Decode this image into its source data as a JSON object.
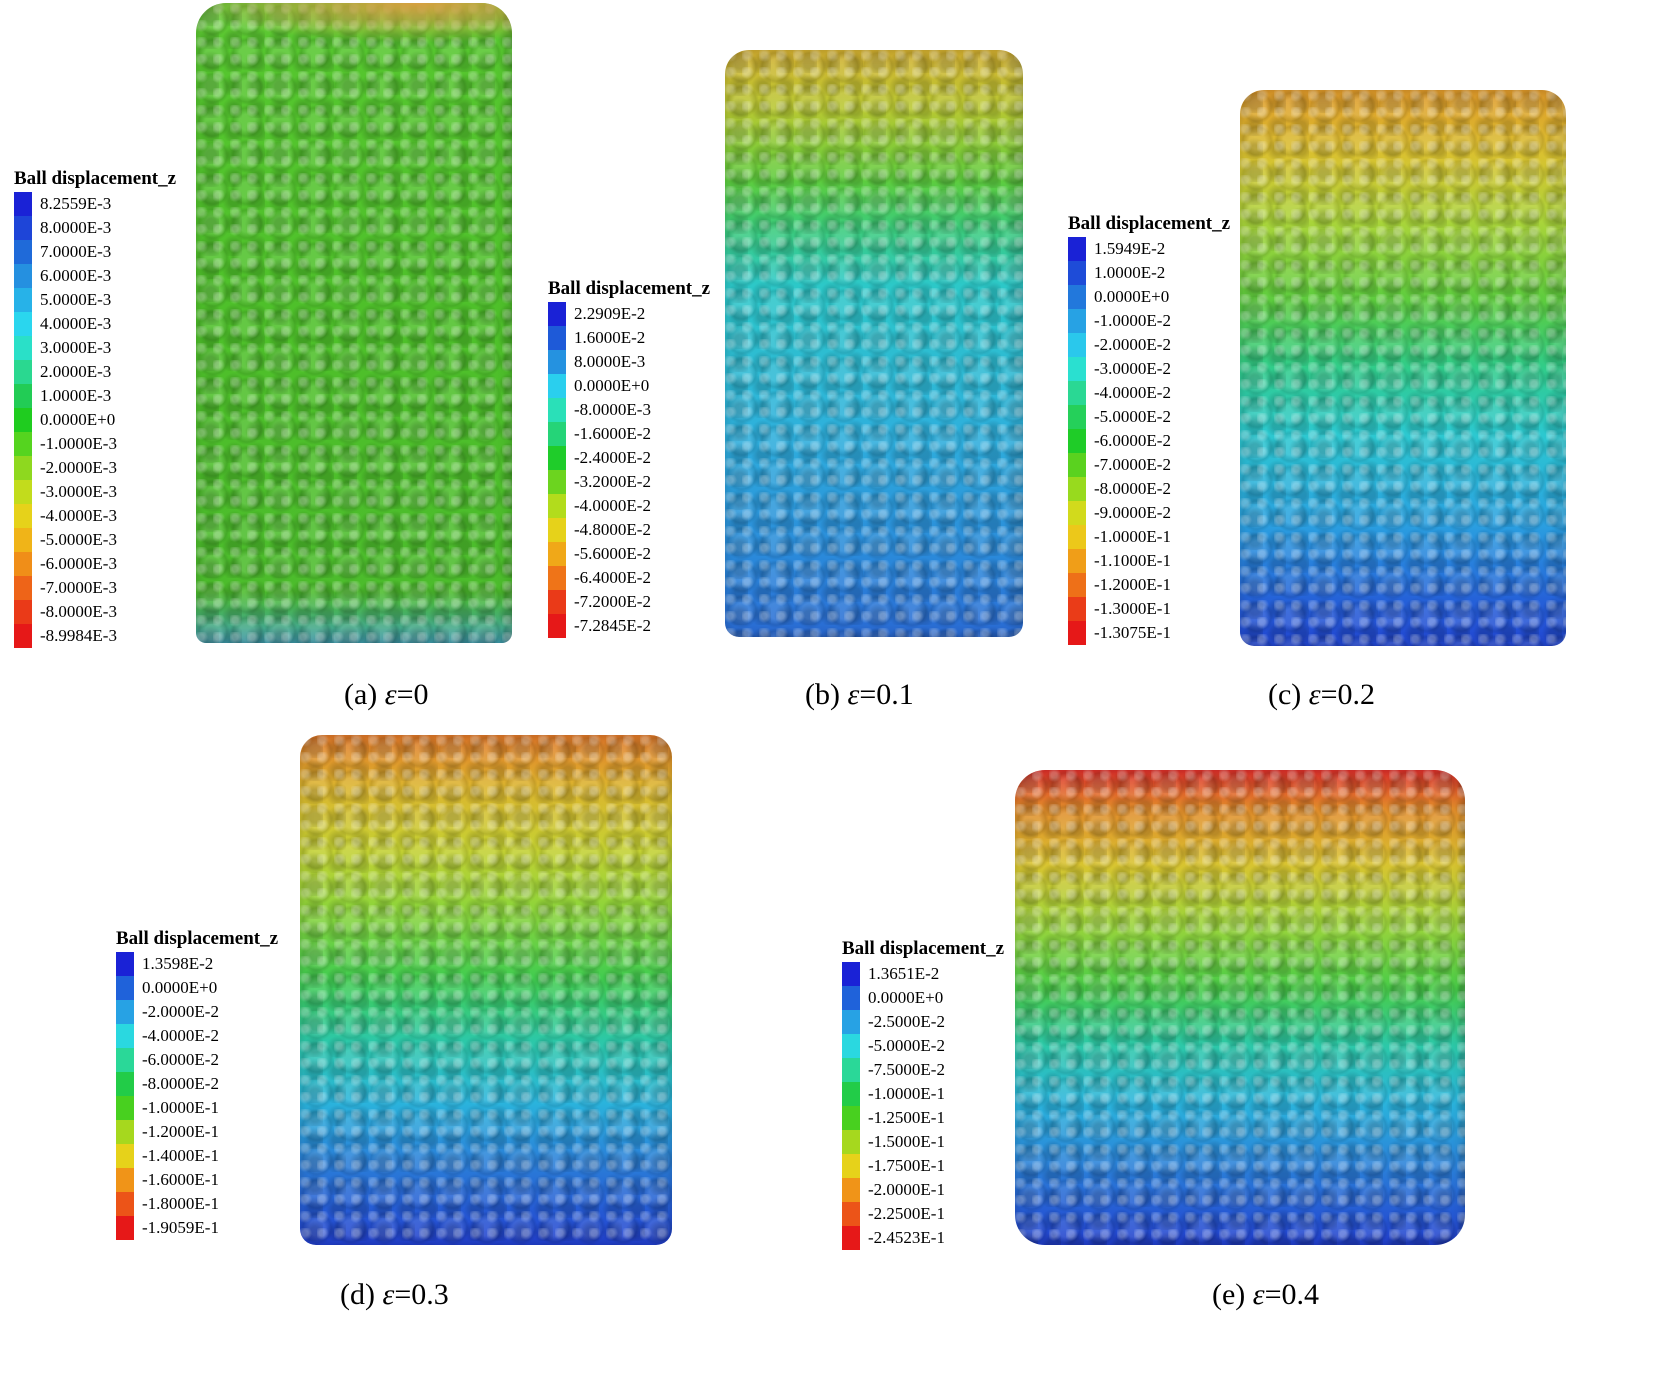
{
  "legend_title": "Ball displacement_z",
  "panels": [
    {
      "id": "a",
      "caption": {
        "prefix": "(a) ",
        "symbol": "ε",
        "suffix": "=0"
      },
      "labels": [
        "8.2559E-3",
        "8.0000E-3",
        "7.0000E-3",
        "6.0000E-3",
        "5.0000E-3",
        "4.0000E-3",
        "3.0000E-3",
        "2.0000E-3",
        "1.0000E-3",
        "0.0000E+0",
        "-1.0000E-3",
        "-2.0000E-3",
        "-3.0000E-3",
        "-4.0000E-3",
        "-5.0000E-3",
        "-6.0000E-3",
        "-7.0000E-3",
        "-8.0000E-3",
        "-8.9984E-3"
      ],
      "colors": [
        "#1a22d6",
        "#1e45d8",
        "#1f6ad9",
        "#2590e0",
        "#27b2e8",
        "#2ad6ee",
        "#2ae0c8",
        "#2ad890",
        "#22cc55",
        "#1fcc1f",
        "#55d41f",
        "#8ed81f",
        "#c2dc1c",
        "#e6d21a",
        "#f0b418",
        "#f08e18",
        "#ee6418",
        "#ea3a18",
        "#e61818"
      ],
      "specimen_gradient": [
        "#6fcc3a 0%",
        "#56c62f 6%",
        "#4ec02a 50%",
        "#4cbc2c 92%",
        "#3f9fb0 100%"
      ],
      "specimen_top_tint": "#d6a040"
    },
    {
      "id": "b",
      "caption": {
        "prefix": "(b) ",
        "symbol": "ε",
        "suffix": "=0.1"
      },
      "labels": [
        "2.2909E-2",
        "1.6000E-2",
        "8.0000E-3",
        "0.0000E+0",
        "-8.0000E-3",
        "-1.6000E-2",
        "-2.4000E-2",
        "-3.2000E-2",
        "-4.0000E-2",
        "-4.8000E-2",
        "-5.6000E-2",
        "-6.4000E-2",
        "-7.2000E-2",
        "-7.2845E-2"
      ],
      "colors": [
        "#1a22d6",
        "#1e5ad8",
        "#2592e0",
        "#2acfee",
        "#2ae0b8",
        "#25d478",
        "#1fcc2a",
        "#6cd41f",
        "#b2dc1c",
        "#e6d21a",
        "#f0a818",
        "#ef7418",
        "#ea3a18",
        "#e61818"
      ],
      "specimen_gradient": [
        "#d4b030 0%",
        "#b8c832 10%",
        "#5ecc3c 22%",
        "#3ccc78 30%",
        "#2cc8c8 40%",
        "#2eb0dc 65%",
        "#2a86da 88%",
        "#2a6ad4 100%"
      ]
    },
    {
      "id": "c",
      "caption": {
        "prefix": "(c) ",
        "symbol": "ε",
        "suffix": "=0.2"
      },
      "labels": [
        "1.5949E-2",
        "1.0000E-2",
        "0.0000E+0",
        "-1.0000E-2",
        "-2.0000E-2",
        "-3.0000E-2",
        "-4.0000E-2",
        "-5.0000E-2",
        "-6.0000E-2",
        "-7.0000E-2",
        "-8.0000E-2",
        "-9.0000E-2",
        "-1.0000E-1",
        "-1.1000E-1",
        "-1.2000E-1",
        "-1.3000E-1",
        "-1.3075E-1"
      ],
      "colors": [
        "#1a22d6",
        "#1e4cd8",
        "#2278dc",
        "#27a2e4",
        "#2ac8ec",
        "#2ae0d0",
        "#2ad894",
        "#25d05a",
        "#1fcc28",
        "#5ad21f",
        "#98da1e",
        "#d2da1c",
        "#ecc81a",
        "#f09e18",
        "#ee7018",
        "#ea3c18",
        "#e61818"
      ],
      "specimen_gradient": [
        "#e09a2a 0%",
        "#d8c230 12%",
        "#a8d43a 24%",
        "#5ccc3e 38%",
        "#30cc8a 50%",
        "#2cc8d0 62%",
        "#2aa0e0 78%",
        "#2560d8 92%",
        "#2246d2 100%"
      ]
    },
    {
      "id": "d",
      "caption": {
        "prefix": "(d) ",
        "symbol": "ε",
        "suffix": "=0.3"
      },
      "labels": [
        "1.3598E-2",
        "0.0000E+0",
        "-2.0000E-2",
        "-4.0000E-2",
        "-6.0000E-2",
        "-8.0000E-2",
        "-1.0000E-1",
        "-1.2000E-1",
        "-1.4000E-1",
        "-1.6000E-1",
        "-1.8000E-1",
        "-1.9059E-1"
      ],
      "colors": [
        "#1a22d6",
        "#1f62da",
        "#27a2e4",
        "#2ad8e0",
        "#2ad898",
        "#22cc48",
        "#48d01f",
        "#a6d81e",
        "#e6d21a",
        "#f09418",
        "#ec5418",
        "#e61818"
      ],
      "specimen_gradient": [
        "#e07828 0%",
        "#dcb42e 10%",
        "#c6d032 22%",
        "#8ed43a 34%",
        "#40cc50 48%",
        "#2cc8a8 60%",
        "#2ab4dc 72%",
        "#2a7ed8 84%",
        "#2240d0 100%"
      ]
    },
    {
      "id": "e",
      "caption": {
        "prefix": "(e) ",
        "symbol": "ε",
        "suffix": "=0.4"
      },
      "labels": [
        "1.3651E-2",
        "0.0000E+0",
        "-2.5000E-2",
        "-5.0000E-2",
        "-7.5000E-2",
        "-1.0000E-1",
        "-1.2500E-1",
        "-1.5000E-1",
        "-1.7500E-1",
        "-2.0000E-1",
        "-2.2500E-1",
        "-2.4523E-1"
      ],
      "colors": [
        "#1a22d6",
        "#1f62da",
        "#27a2e4",
        "#2ad8e0",
        "#2ad898",
        "#22cc48",
        "#48d01f",
        "#a6d81e",
        "#e6d21a",
        "#f09418",
        "#ec5418",
        "#e61818"
      ],
      "specimen_gradient": [
        "#e0302a 0%",
        "#e08a2a 8%",
        "#d8c430 20%",
        "#9ed43a 32%",
        "#48cc48 46%",
        "#2cc8a8 58%",
        "#2ab4dc 70%",
        "#2a7ed8 84%",
        "#2240d0 100%"
      ]
    }
  ]
}
